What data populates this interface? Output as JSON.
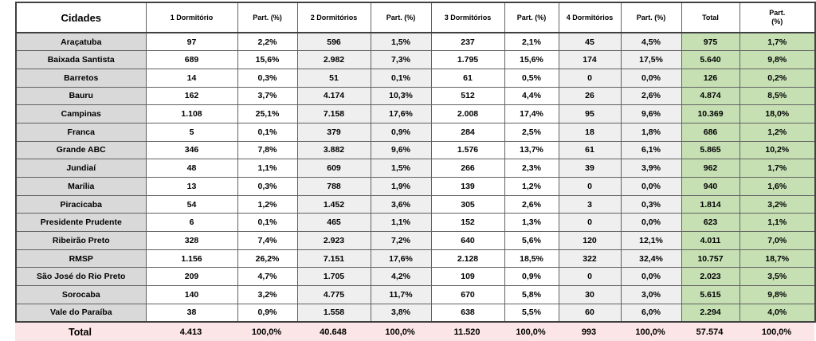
{
  "colors": {
    "city_column_bg": "#d9d9d9",
    "alt_column_bg": "#efefef",
    "total_column_bg": "#c6e0b4",
    "total_row_bg": "#fbe5e6",
    "percent_text": "#538135",
    "border": "#616161",
    "outer_border": "#404040"
  },
  "chart_data": {
    "type": "table",
    "title": "",
    "columns": [
      "Cidades",
      "1 Dormitório",
      "Part. (%)",
      "2 Dormitórios",
      "Part. (%)",
      "3 Dormitórios",
      "Part. (%)",
      "4 Dormitórios",
      "Part. (%)",
      "Total",
      "Part. (%)"
    ],
    "rows": [
      [
        "Araçatuba",
        "97",
        "2,2%",
        "596",
        "1,5%",
        "237",
        "2,1%",
        "45",
        "4,5%",
        "975",
        "1,7%"
      ],
      [
        "Baixada Santista",
        "689",
        "15,6%",
        "2.982",
        "7,3%",
        "1.795",
        "15,6%",
        "174",
        "17,5%",
        "5.640",
        "9,8%"
      ],
      [
        "Barretos",
        "14",
        "0,3%",
        "51",
        "0,1%",
        "61",
        "0,5%",
        "0",
        "0,0%",
        "126",
        "0,2%"
      ],
      [
        "Bauru",
        "162",
        "3,7%",
        "4.174",
        "10,3%",
        "512",
        "4,4%",
        "26",
        "2,6%",
        "4.874",
        "8,5%"
      ],
      [
        "Campinas",
        "1.108",
        "25,1%",
        "7.158",
        "17,6%",
        "2.008",
        "17,4%",
        "95",
        "9,6%",
        "10.369",
        "18,0%"
      ],
      [
        "Franca",
        "5",
        "0,1%",
        "379",
        "0,9%",
        "284",
        "2,5%",
        "18",
        "1,8%",
        "686",
        "1,2%"
      ],
      [
        "Grande ABC",
        "346",
        "7,8%",
        "3.882",
        "9,6%",
        "1.576",
        "13,7%",
        "61",
        "6,1%",
        "5.865",
        "10,2%"
      ],
      [
        "Jundiaí",
        "48",
        "1,1%",
        "609",
        "1,5%",
        "266",
        "2,3%",
        "39",
        "3,9%",
        "962",
        "1,7%"
      ],
      [
        "Marília",
        "13",
        "0,3%",
        "788",
        "1,9%",
        "139",
        "1,2%",
        "0",
        "0,0%",
        "940",
        "1,6%"
      ],
      [
        "Piracicaba",
        "54",
        "1,2%",
        "1.452",
        "3,6%",
        "305",
        "2,6%",
        "3",
        "0,3%",
        "1.814",
        "3,2%"
      ],
      [
        "Presidente Prudente",
        "6",
        "0,1%",
        "465",
        "1,1%",
        "152",
        "1,3%",
        "0",
        "0,0%",
        "623",
        "1,1%"
      ],
      [
        "Ribeirão Preto",
        "328",
        "7,4%",
        "2.923",
        "7,2%",
        "640",
        "5,6%",
        "120",
        "12,1%",
        "4.011",
        "7,0%"
      ],
      [
        "RMSP",
        "1.156",
        "26,2%",
        "7.151",
        "17,6%",
        "2.128",
        "18,5%",
        "322",
        "32,4%",
        "10.757",
        "18,7%"
      ],
      [
        "São José do Rio Preto",
        "209",
        "4,7%",
        "1.705",
        "4,2%",
        "109",
        "0,9%",
        "0",
        "0,0%",
        "2.023",
        "3,5%"
      ],
      [
        "Sorocaba",
        "140",
        "3,2%",
        "4.775",
        "11,7%",
        "670",
        "5,8%",
        "30",
        "3,0%",
        "5.615",
        "9,8%"
      ],
      [
        "Vale do Paraíba",
        "38",
        "0,9%",
        "1.558",
        "3,8%",
        "638",
        "5,5%",
        "60",
        "6,0%",
        "2.294",
        "4,0%"
      ]
    ],
    "total_row": [
      "Total",
      "4.413",
      "100,0%",
      "40.648",
      "100,0%",
      "11.520",
      "100,0%",
      "993",
      "100,0%",
      "57.574",
      "100,0%"
    ],
    "layout": {
      "grid": "all-borders",
      "total_row_has_inner_borders": false,
      "percent_columns_text_color": "green",
      "legend_position": "none"
    }
  }
}
